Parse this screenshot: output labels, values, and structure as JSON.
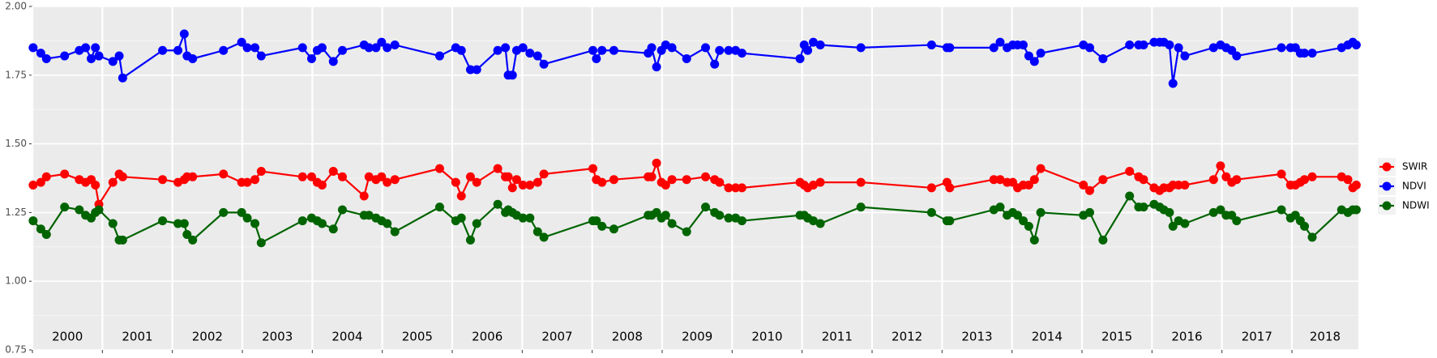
{
  "chart_data": {
    "type": "line",
    "x": [
      2000.01,
      2000.12,
      2000.2,
      2000.46,
      2000.67,
      2000.76,
      2000.84,
      2000.9,
      2000.95,
      2001.15,
      2001.24,
      2001.29,
      2001.86,
      2002.08,
      2002.17,
      2002.21,
      2002.29,
      2002.73,
      2002.99,
      2003.07,
      2003.18,
      2003.27,
      2003.86,
      2003.99,
      2004.07,
      2004.14,
      2004.3,
      2004.43,
      2004.74,
      2004.81,
      2004.91,
      2004.99,
      2005.07,
      2005.18,
      2005.82,
      2006.05,
      2006.13,
      2006.26,
      2006.35,
      2006.65,
      2006.76,
      2006.8,
      2006.86,
      2006.92,
      2007.01,
      2007.11,
      2007.22,
      2007.31,
      2008.01,
      2008.06,
      2008.14,
      2008.31,
      2008.8,
      2008.85,
      2008.92,
      2008.99,
      2009.05,
      2009.14,
      2009.35,
      2009.62,
      2009.75,
      2009.82,
      2009.95,
      2010.05,
      2010.14,
      2010.97,
      2011.03,
      2011.08,
      2011.16,
      2011.26,
      2011.84,
      2012.85,
      2013.07,
      2013.11,
      2013.74,
      2013.83,
      2013.93,
      2014.01,
      2014.08,
      2014.16,
      2014.24,
      2014.32,
      2014.41,
      2015.02,
      2015.11,
      2015.3,
      2015.68,
      2015.81,
      2015.88,
      2016.03,
      2016.11,
      2016.17,
      2016.25,
      2016.3,
      2016.38,
      2016.47,
      2016.88,
      2016.98,
      2017.06,
      2017.14,
      2017.21,
      2017.85,
      2017.98,
      2018.05,
      2018.12,
      2018.18,
      2018.29,
      2018.71,
      2018.8,
      2018.87,
      2018.92
    ],
    "series": [
      {
        "name": "SWIR",
        "color": "#ff0000",
        "values": [
          1.35,
          1.36,
          1.38,
          1.39,
          1.37,
          1.36,
          1.37,
          1.35,
          1.28,
          1.36,
          1.39,
          1.38,
          1.37,
          1.36,
          1.37,
          1.38,
          1.38,
          1.39,
          1.36,
          1.36,
          1.37,
          1.4,
          1.38,
          1.38,
          1.36,
          1.35,
          1.4,
          1.38,
          1.31,
          1.38,
          1.37,
          1.38,
          1.36,
          1.37,
          1.41,
          1.36,
          1.31,
          1.38,
          1.36,
          1.41,
          1.38,
          1.38,
          1.34,
          1.37,
          1.35,
          1.35,
          1.36,
          1.39,
          1.41,
          1.37,
          1.36,
          1.37,
          1.38,
          1.38,
          1.43,
          1.36,
          1.35,
          1.37,
          1.37,
          1.38,
          1.37,
          1.36,
          1.34,
          1.34,
          1.34,
          1.36,
          1.35,
          1.34,
          1.35,
          1.36,
          1.36,
          1.34,
          1.36,
          1.34,
          1.37,
          1.37,
          1.36,
          1.36,
          1.34,
          1.35,
          1.35,
          1.37,
          1.41,
          1.35,
          1.33,
          1.37,
          1.4,
          1.38,
          1.37,
          1.34,
          1.33,
          1.34,
          1.34,
          1.35,
          1.35,
          1.35,
          1.37,
          1.42,
          1.38,
          1.36,
          1.37,
          1.39,
          1.35,
          1.35,
          1.36,
          1.37,
          1.38,
          1.38,
          1.37,
          1.34,
          1.35
        ]
      },
      {
        "name": "NDVI",
        "color": "#0000ff",
        "values": [
          1.85,
          1.83,
          1.81,
          1.82,
          1.84,
          1.85,
          1.81,
          1.85,
          1.82,
          1.8,
          1.82,
          1.74,
          1.84,
          1.84,
          1.9,
          1.82,
          1.81,
          1.84,
          1.87,
          1.85,
          1.85,
          1.82,
          1.85,
          1.81,
          1.84,
          1.85,
          1.8,
          1.84,
          1.86,
          1.85,
          1.85,
          1.87,
          1.85,
          1.86,
          1.82,
          1.85,
          1.84,
          1.77,
          1.77,
          1.84,
          1.85,
          1.75,
          1.75,
          1.84,
          1.85,
          1.83,
          1.82,
          1.79,
          1.84,
          1.81,
          1.84,
          1.84,
          1.83,
          1.85,
          1.78,
          1.84,
          1.86,
          1.85,
          1.81,
          1.85,
          1.79,
          1.84,
          1.84,
          1.84,
          1.83,
          1.81,
          1.86,
          1.84,
          1.87,
          1.86,
          1.85,
          1.86,
          1.85,
          1.85,
          1.85,
          1.87,
          1.85,
          1.86,
          1.86,
          1.86,
          1.82,
          1.8,
          1.83,
          1.86,
          1.85,
          1.81,
          1.86,
          1.86,
          1.86,
          1.87,
          1.87,
          1.87,
          1.86,
          1.72,
          1.85,
          1.82,
          1.85,
          1.86,
          1.85,
          1.84,
          1.82,
          1.85,
          1.85,
          1.85,
          1.83,
          1.83,
          1.83,
          1.85,
          1.86,
          1.87,
          1.86
        ]
      },
      {
        "name": "NDWI",
        "color": "#006400",
        "values": [
          1.22,
          1.19,
          1.17,
          1.27,
          1.26,
          1.24,
          1.23,
          1.25,
          1.26,
          1.21,
          1.15,
          1.15,
          1.22,
          1.21,
          1.21,
          1.17,
          1.15,
          1.25,
          1.25,
          1.23,
          1.21,
          1.14,
          1.22,
          1.23,
          1.22,
          1.21,
          1.19,
          1.26,
          1.24,
          1.24,
          1.23,
          1.22,
          1.21,
          1.18,
          1.27,
          1.22,
          1.23,
          1.15,
          1.21,
          1.28,
          1.25,
          1.26,
          1.25,
          1.24,
          1.23,
          1.23,
          1.18,
          1.16,
          1.22,
          1.22,
          1.2,
          1.19,
          1.24,
          1.24,
          1.25,
          1.23,
          1.24,
          1.21,
          1.18,
          1.27,
          1.25,
          1.24,
          1.23,
          1.23,
          1.22,
          1.24,
          1.24,
          1.23,
          1.22,
          1.21,
          1.27,
          1.25,
          1.22,
          1.22,
          1.26,
          1.27,
          1.24,
          1.25,
          1.24,
          1.22,
          1.2,
          1.15,
          1.25,
          1.24,
          1.25,
          1.15,
          1.31,
          1.27,
          1.27,
          1.28,
          1.27,
          1.26,
          1.25,
          1.2,
          1.22,
          1.21,
          1.25,
          1.26,
          1.24,
          1.24,
          1.22,
          1.26,
          1.23,
          1.24,
          1.22,
          1.2,
          1.16,
          1.26,
          1.25,
          1.26,
          1.26
        ]
      }
    ],
    "xlim": [
      2000,
      2018.95
    ],
    "xticks": [
      2000,
      2001,
      2002,
      2003,
      2004,
      2005,
      2006,
      2007,
      2008,
      2009,
      2010,
      2011,
      2012,
      2013,
      2014,
      2015,
      2016,
      2017,
      2018
    ],
    "ylim": [
      0.75,
      2.0
    ],
    "yticks": [
      {
        "value": 0.75,
        "label": "0.75"
      },
      {
        "value": 1.0,
        "label": "1.00"
      },
      {
        "value": 1.25,
        "label": "1.25"
      },
      {
        "value": 1.5,
        "label": "1.50"
      },
      {
        "value": 1.75,
        "label": "1.75"
      },
      {
        "value": 2.0,
        "label": "2.00"
      }
    ],
    "grid": true,
    "legend": "right"
  }
}
